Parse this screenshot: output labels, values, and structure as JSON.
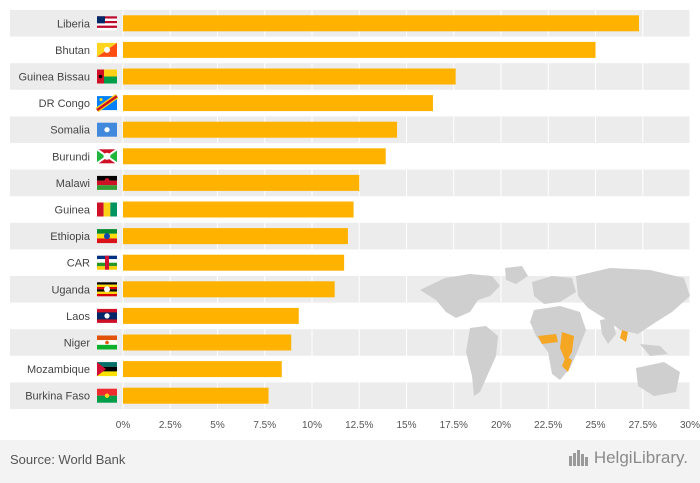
{
  "chart_data": {
    "type": "bar",
    "orientation": "horizontal",
    "title": "",
    "xlabel": "",
    "ylabel": "",
    "categories": [
      "Liberia",
      "Bhutan",
      "Guinea Bissau",
      "DR Congo",
      "Somalia",
      "Burundi",
      "Malawi",
      "Guinea",
      "Ethiopia",
      "CAR",
      "Uganda",
      "Laos",
      "Niger",
      "Mozambique",
      "Burkina Faso"
    ],
    "values": [
      27.3,
      25.0,
      17.6,
      16.4,
      14.5,
      13.9,
      12.5,
      12.2,
      11.9,
      11.7,
      11.2,
      9.3,
      8.9,
      8.4,
      7.7
    ],
    "xlim": [
      0,
      30
    ],
    "xticks": [
      "0%",
      "2.5%",
      "5%",
      "7.5%",
      "10%",
      "12.5%",
      "15%",
      "17.5%",
      "20%",
      "22.5%",
      "25%",
      "27.5%",
      "30%"
    ],
    "bar_color": "#ffb200",
    "row_stripe_color": "#ececec",
    "grid": true,
    "legend": "none"
  },
  "footer": {
    "source": "Source: World Bank",
    "brand": "HelgiLibrary."
  },
  "colors": {
    "map_land": "#cfcfcf",
    "map_highlight": "#f5a623"
  },
  "icons": {
    "flags": "country-flag-icon",
    "brand": "helgi-library-logo-icon",
    "map": "world-map-icon"
  }
}
